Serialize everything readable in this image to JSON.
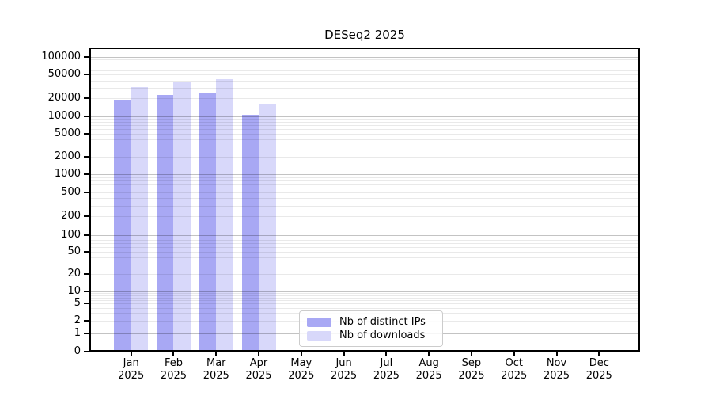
{
  "chart_data": {
    "type": "bar",
    "title": "DESeq2 2025",
    "year_label": "2025",
    "categories": [
      "Jan",
      "Feb",
      "Mar",
      "Apr",
      "May",
      "Jun",
      "Jul",
      "Aug",
      "Sep",
      "Oct",
      "Nov",
      "Dec"
    ],
    "series": [
      {
        "name": "Nb of distinct IPs",
        "color": "#a8a8f4",
        "values": [
          20000,
          24000,
          26000,
          11000,
          0,
          0,
          0,
          0,
          0,
          0,
          0,
          0
        ]
      },
      {
        "name": "Nb of downloads",
        "color": "#d8d8fa",
        "values": [
          32500,
          40000,
          44000,
          17000,
          0,
          0,
          0,
          0,
          0,
          0,
          0,
          0
        ]
      }
    ],
    "y_ticks": [
      0,
      1,
      2,
      5,
      10,
      20,
      50,
      100,
      200,
      500,
      1000,
      2000,
      5000,
      10000,
      20000,
      50000,
      100000
    ],
    "y_scale": "symlog",
    "ylim": [
      0,
      100000
    ],
    "grid": "horizontal major decades + log minor lines",
    "legend_position": "inside lower-center-left",
    "axis_color": "#000000",
    "major_grid_color": "#c4c4c4",
    "minor_grid_color": "#eaeaea"
  }
}
